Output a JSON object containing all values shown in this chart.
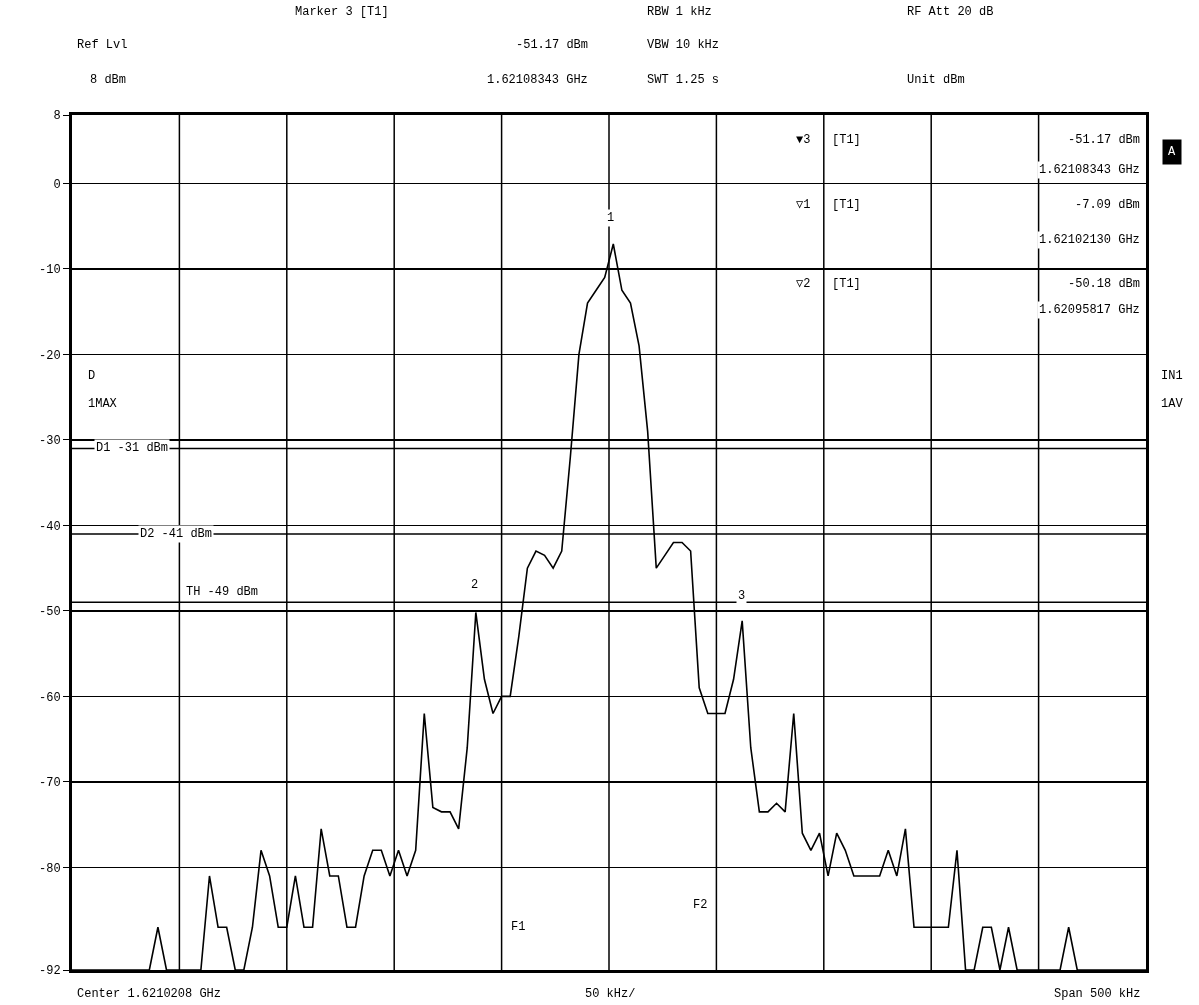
{
  "chart_data": {
    "type": "line",
    "categories": [
      null,
      null,
      null,
      null,
      null,
      null,
      null,
      null,
      null,
      null,
      null,
      null,
      null,
      null,
      null,
      null,
      null,
      null,
      null,
      null,
      null,
      null,
      null,
      null,
      null,
      null,
      null,
      null,
      null,
      null,
      null,
      null,
      null,
      null,
      null,
      null,
      null,
      null,
      null,
      null,
      null,
      null,
      null,
      null,
      null,
      null,
      null,
      null,
      null,
      null,
      null,
      null,
      null,
      null,
      null,
      null,
      null,
      null,
      null,
      null,
      null,
      null,
      null,
      null,
      null,
      null,
      null,
      null,
      null,
      null,
      null,
      null,
      null,
      null,
      null,
      null,
      null,
      null,
      null,
      null,
      null,
      null,
      null,
      null,
      null,
      null,
      null,
      null,
      null,
      null,
      null,
      null,
      null,
      null,
      null,
      null,
      null,
      null,
      null,
      null,
      null,
      null,
      null,
      null,
      null,
      null,
      null,
      null,
      null,
      null,
      null,
      null,
      null,
      null,
      null,
      null,
      null,
      null,
      null,
      null,
      null,
      null,
      null,
      null,
      null,
      null
    ],
    "ylim": [
      -92,
      8
    ],
    "yticks": [
      8,
      0,
      -10,
      -20,
      -30,
      -40,
      -50,
      -60,
      -70,
      -80,
      -92
    ],
    "grid": true,
    "tick_labels": "y",
    "series": [
      {
        "color": "#000000",
        "values": [
          -92,
          -92,
          -92,
          -92,
          -92,
          -92,
          -92,
          -92,
          -92,
          -92,
          -87,
          -92,
          -92,
          -92,
          -92,
          -92,
          -81,
          -87,
          -87,
          -92,
          -92,
          -87,
          -78,
          -81,
          -87,
          -87,
          -81,
          -87,
          -87,
          -75.5,
          -81,
          -81,
          -87,
          -87,
          -81,
          -78,
          -78,
          -81,
          -78,
          -81,
          -78,
          -62,
          -73,
          -73.5,
          -73.5,
          -75.5,
          -66,
          -50.18,
          -58,
          -62,
          -60,
          -60,
          -53,
          -45,
          -43,
          -43.5,
          -45,
          -43,
          -32,
          -20,
          -14,
          -12.5,
          -11,
          -7.09,
          -12.5,
          -14,
          -19,
          -29,
          -45,
          -43.5,
          -42,
          -42,
          -43,
          -59,
          -62,
          -62,
          -62,
          -58,
          -51.17,
          -66,
          -73.5,
          -73.5,
          -72.5,
          -73.5,
          -62,
          -76,
          -78,
          -76,
          -81,
          -76,
          -78,
          -81,
          -81,
          -81,
          -81,
          -78,
          -81,
          -75.5,
          -87,
          -87,
          -87,
          -87,
          -87,
          -78,
          -92,
          -92,
          -87,
          -87,
          -92,
          -87,
          -92,
          -92,
          -92,
          -92,
          -92,
          -92,
          -87,
          -92,
          -92,
          -92,
          -92,
          -92,
          -92,
          -92,
          -92,
          -92
        ]
      }
    ],
    "ref_lines": [
      {
        "axis": "y",
        "value": -31,
        "label": "D1 -31 dBm"
      },
      {
        "axis": "y",
        "value": -41,
        "label": "D2 -41 dBm"
      },
      {
        "axis": "y",
        "value": -49,
        "label": "TH -49 dBm"
      }
    ],
    "annotations": [
      "Marker 3 [T1]",
      "RBW 1 kHz",
      "RF Att 20 dB",
      "Ref Lvl",
      "-51.17 dBm",
      "VBW 10 kHz",
      "8 dBm",
      "1.62108343 GHz",
      "SWT 1.25 s",
      "Unit dBm",
      "▼3",
      "[T1]",
      "-51.17 dBm",
      "1.62108343 GHz",
      "▽1",
      "[T1]",
      "-7.09 dBm",
      "1.62102130 GHz",
      "▽2",
      "[T1]",
      "-50.18 dBm",
      "1.62095817 GHz",
      "A",
      "IN1",
      "1AV",
      "D",
      "1MAX",
      "Center 1.6210208 GHz",
      "50 kHz/",
      "Span 500 kHz",
      "1",
      "2",
      "3",
      "F1",
      "F2"
    ]
  }
}
